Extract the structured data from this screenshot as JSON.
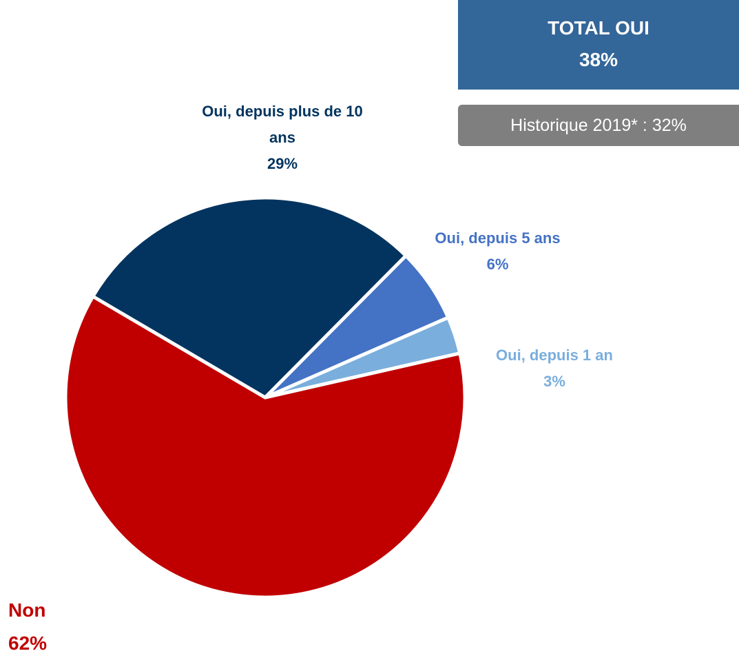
{
  "chart_data": {
    "type": "pie",
    "categories": [
      "Oui, depuis plus de 10 ans",
      "Oui, depuis 5 ans",
      "Oui, depuis 1 an",
      "Non"
    ],
    "values": [
      29,
      6,
      3,
      62
    ],
    "value_labels": [
      "29%",
      "6%",
      "3%",
      "62%"
    ],
    "colors": [
      "#03345f",
      "#4472c4",
      "#7aaedc",
      "#c00000"
    ],
    "total_box": {
      "title": "TOTAL OUI",
      "value": "38%"
    },
    "history_note": "Historique 2019* : 32%"
  }
}
